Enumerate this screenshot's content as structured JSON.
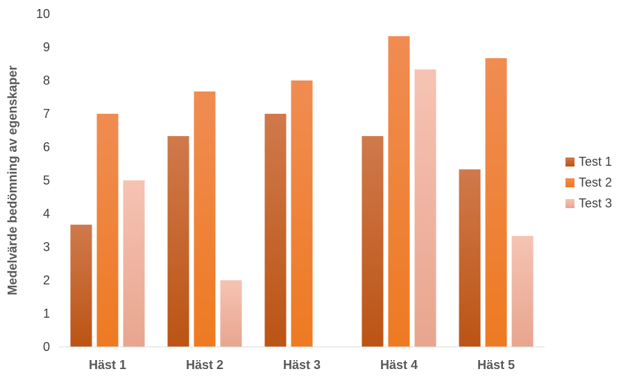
{
  "chart_data": {
    "type": "bar",
    "categories": [
      "Häst 1",
      "Häst 2",
      "Häst 3",
      "Häst 4",
      "Häst 5"
    ],
    "series": [
      {
        "name": "Test 1",
        "values": [
          3.67,
          6.33,
          7.0,
          6.33,
          5.33
        ],
        "color": "#c55a11"
      },
      {
        "name": "Test 2",
        "values": [
          7.0,
          7.67,
          8.0,
          9.33,
          8.67
        ],
        "color": "#ed7d31"
      },
      {
        "name": "Test 3",
        "values": [
          5.0,
          2.0,
          0,
          8.33,
          3.33
        ],
        "color": "#f4b9a5"
      }
    ],
    "ylabel": "Medelvärde bedömning av egenskaper",
    "xlabel": "",
    "title": "",
    "ylim": [
      0,
      10
    ],
    "yticks": [
      "0",
      "1",
      "2",
      "3",
      "4",
      "5",
      "6",
      "7",
      "8",
      "9",
      "10"
    ],
    "grid": false,
    "legend": "right"
  }
}
